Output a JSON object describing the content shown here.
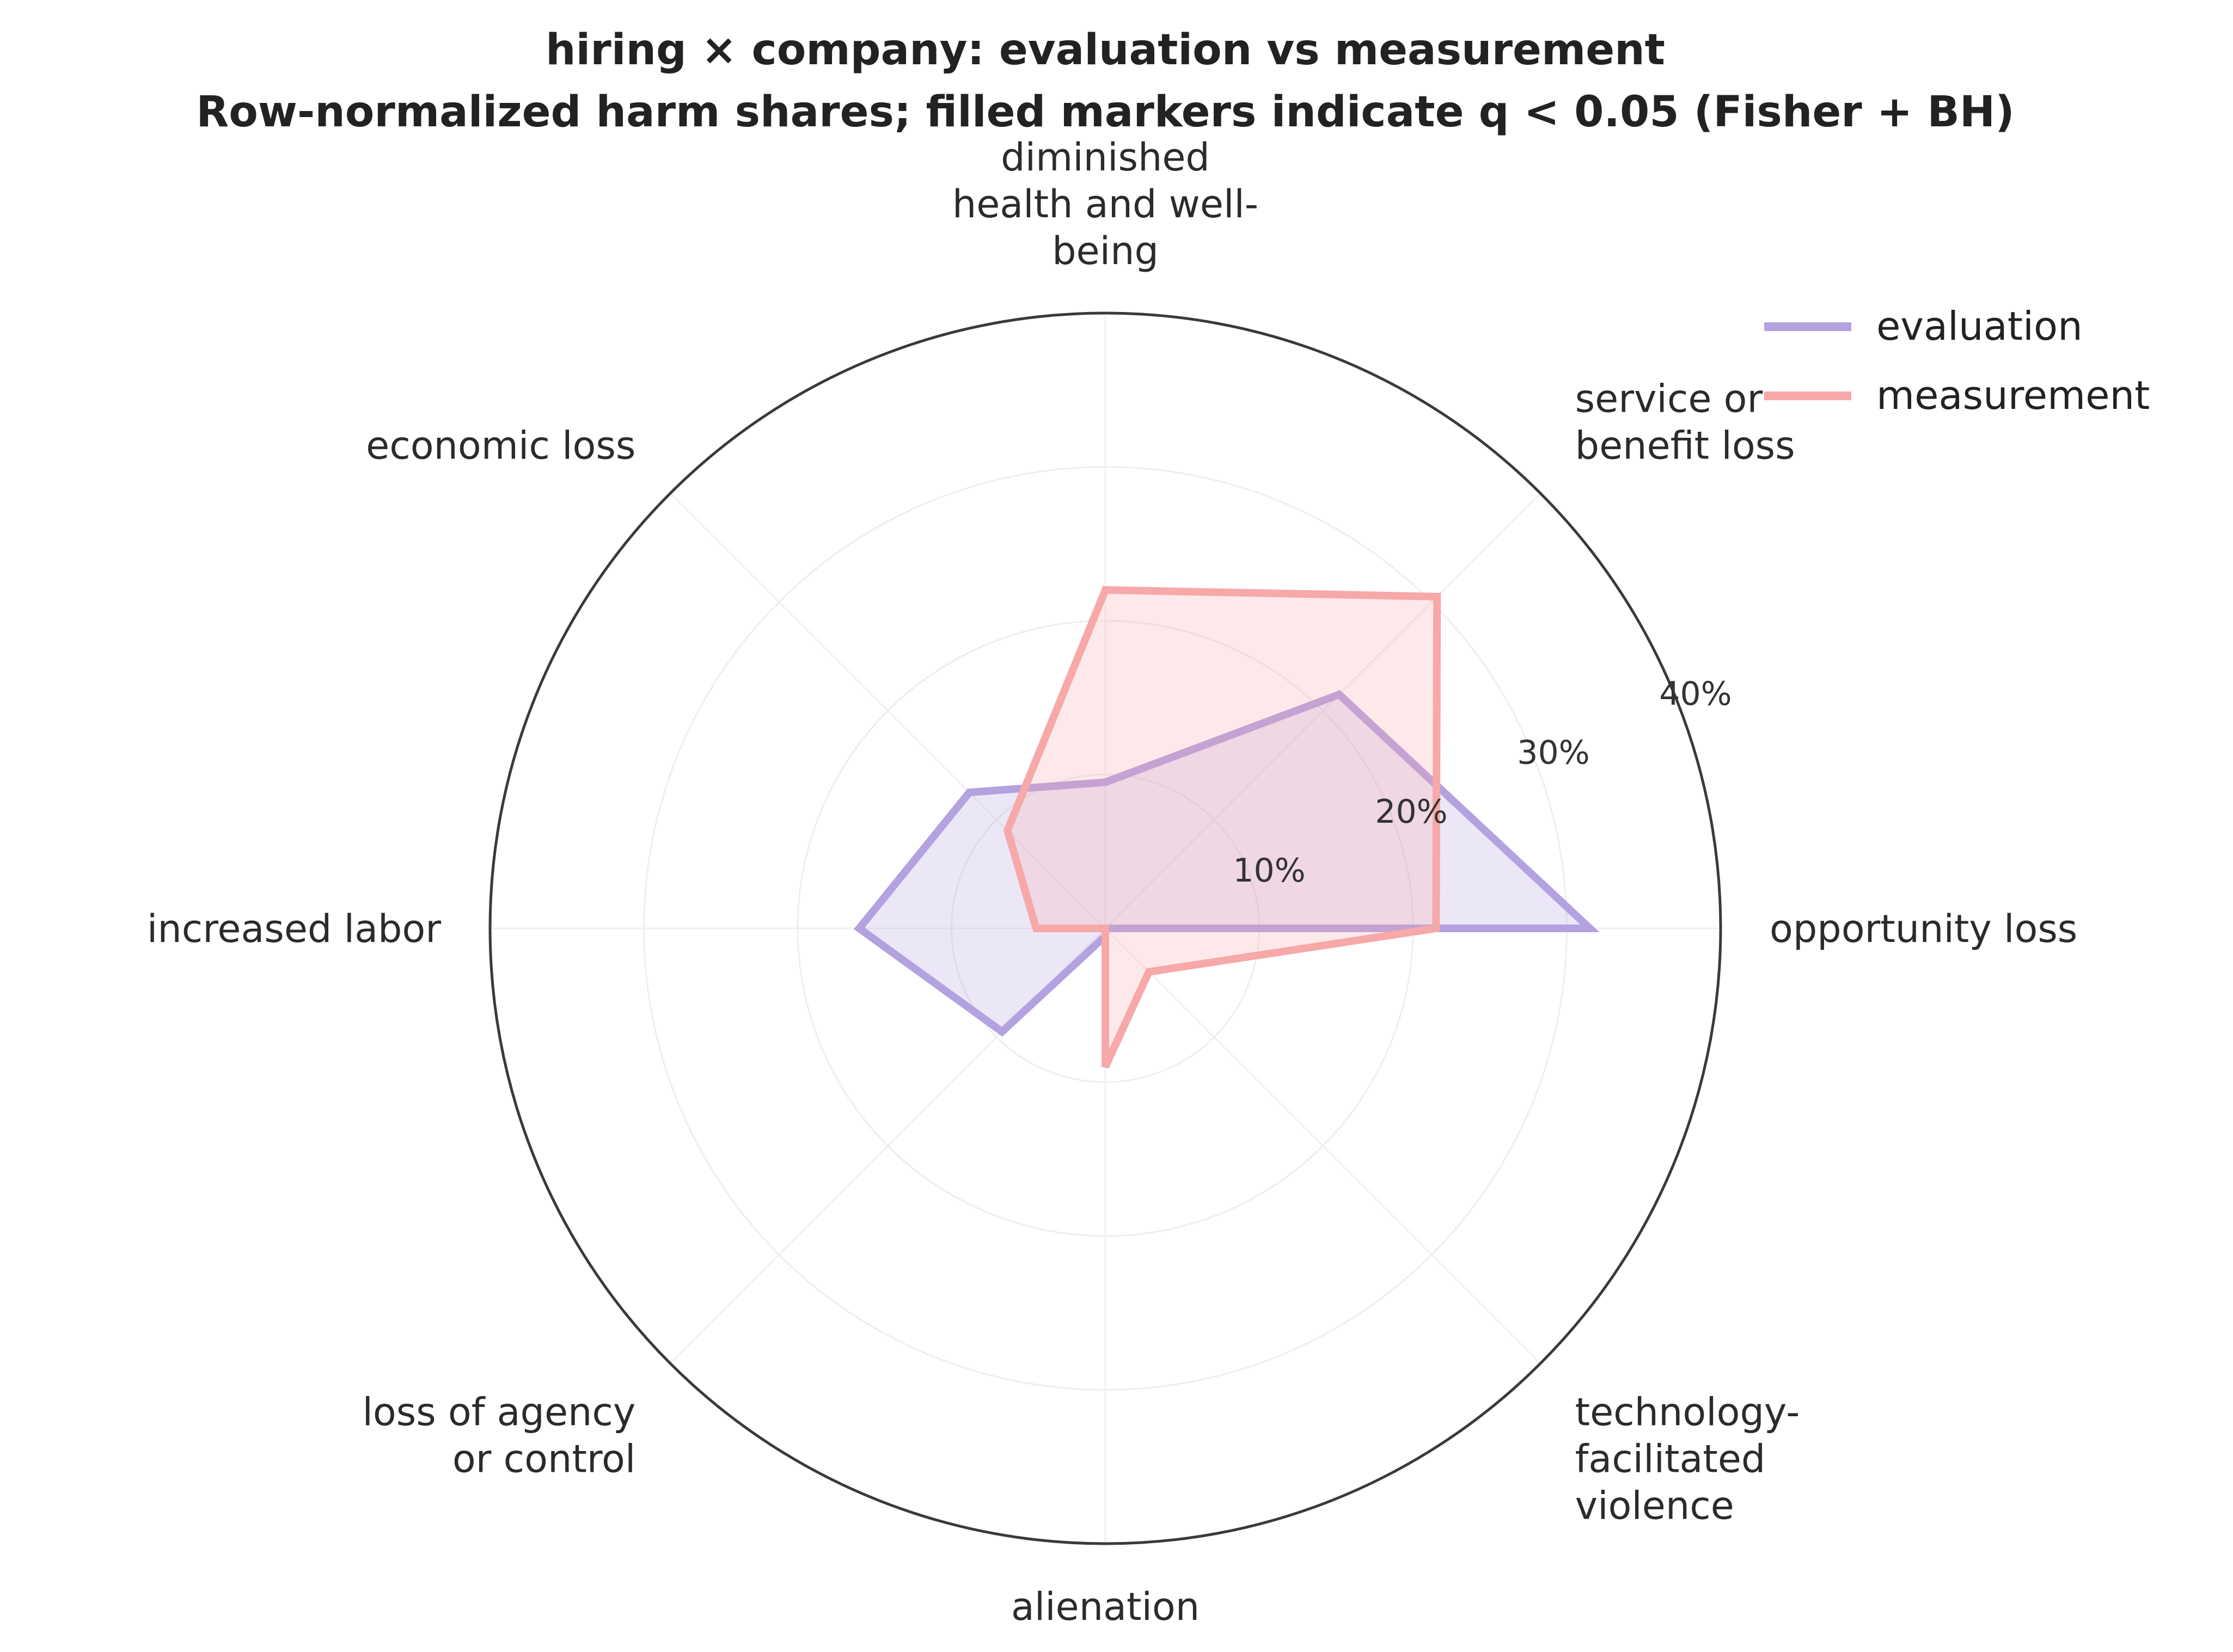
{
  "chart_data": {
    "type": "radar",
    "title_line1": "hiring × company: evaluation vs measurement",
    "title_line2": "Row-normalized harm shares; filled markers indicate q < 0.05 (Fisher + BH)",
    "categories": [
      [
        "opportunity loss"
      ],
      [
        "service or",
        "benefit loss"
      ],
      [
        "diminished",
        "health and well-",
        "being"
      ],
      [
        "economic loss"
      ],
      [
        "increased labor"
      ],
      [
        "loss of agency",
        "or control"
      ],
      [
        "alienation"
      ],
      [
        "technology-",
        "facilitated",
        "violence"
      ]
    ],
    "rmax": 40,
    "radial_ticks": [
      10,
      20,
      30,
      40
    ],
    "radial_tick_labels": [
      "10%",
      "20%",
      "30%",
      "40%"
    ],
    "grid": true,
    "legend_position": "top-right",
    "series": [
      {
        "name": "evaluation",
        "color": "#b3a1e0",
        "values": [
          31.5,
          21.5,
          9.5,
          12.5,
          16.0,
          9.5,
          0.5,
          0.0
        ]
      },
      {
        "name": "measurement",
        "color": "#f7a8a8",
        "values": [
          21.5,
          30.5,
          22.0,
          9.0,
          4.5,
          0.0,
          9.0,
          4.0
        ]
      }
    ]
  }
}
